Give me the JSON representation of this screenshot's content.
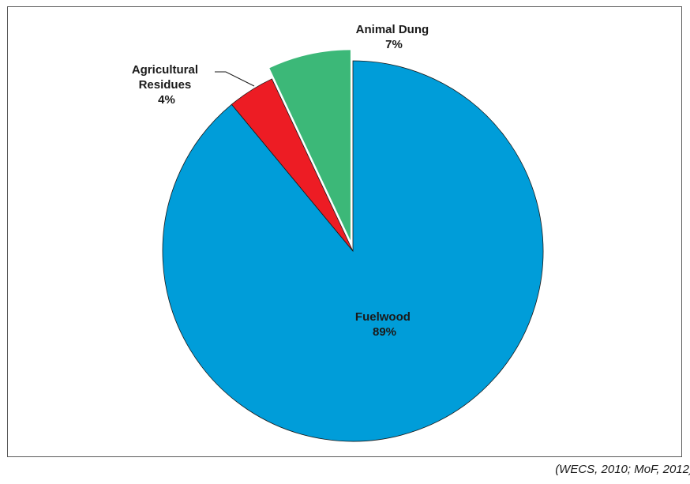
{
  "chart_data": {
    "type": "pie",
    "title": "",
    "slices": [
      {
        "name": "Fuelwood",
        "value": 89,
        "label": "89%",
        "color": "#009dd9",
        "exploded": false
      },
      {
        "name": "Agricultural Residues",
        "label_lines": [
          "Agricultural",
          "Residues"
        ],
        "value": 4,
        "label": "4%",
        "color": "#ed1c24",
        "exploded": false
      },
      {
        "name": "Animal Dung",
        "value": 7,
        "label": "7%",
        "color": "#3cb878",
        "exploded": true
      }
    ],
    "legend": "none",
    "slice_border": "#1a1a1a"
  },
  "source": "(WECS, 2010; MoF, 2012)"
}
